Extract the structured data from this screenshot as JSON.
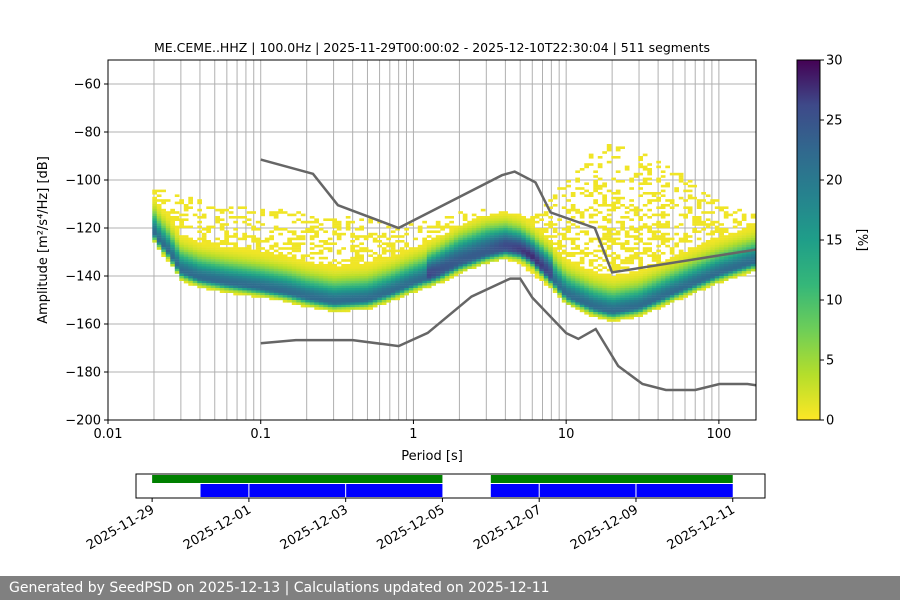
{
  "chart_data": {
    "type": "heatmap",
    "title": "ME.CEME..HHZ | 100.0Hz | 2025-11-29T00:00:02 - 2025-12-10T22:30:04 | 511 segments",
    "xlabel": "Period [s]",
    "ylabel": "Amplitude [m²/s⁴/Hz] [dB]",
    "xscale": "log",
    "xlim": [
      0.01,
      175
    ],
    "ylim": [
      -200,
      -50
    ],
    "xticks": [
      {
        "value": 0.01,
        "label": "0.01"
      },
      {
        "value": 0.1,
        "label": "0.1"
      },
      {
        "value": 1,
        "label": "1"
      },
      {
        "value": 10,
        "label": "10"
      },
      {
        "value": 100,
        "label": "100"
      }
    ],
    "yticks": [
      {
        "value": -60,
        "label": "−60"
      },
      {
        "value": -80,
        "label": "−80"
      },
      {
        "value": -100,
        "label": "−100"
      },
      {
        "value": -120,
        "label": "−120"
      },
      {
        "value": -140,
        "label": "−140"
      },
      {
        "value": -160,
        "label": "−160"
      },
      {
        "value": -180,
        "label": "−180"
      },
      {
        "value": -200,
        "label": "−200"
      }
    ],
    "period_gridlines": [
      0.02,
      0.03,
      0.04,
      0.05,
      0.06,
      0.07,
      0.08,
      0.09,
      0.1,
      0.2,
      0.3,
      0.4,
      0.5,
      0.6,
      0.7,
      0.8,
      0.9,
      1,
      2,
      3,
      4,
      5,
      6,
      7,
      8,
      9,
      10,
      20,
      30,
      40,
      50,
      60,
      70,
      80,
      90,
      100
    ],
    "colorbar": {
      "label": "[%]",
      "range": [
        0,
        30
      ],
      "ticks": [
        {
          "value": 0,
          "label": "0"
        },
        {
          "value": 5,
          "label": "5"
        },
        {
          "value": 10,
          "label": "10"
        },
        {
          "value": 15,
          "label": "15"
        },
        {
          "value": 20,
          "label": "20"
        },
        {
          "value": 25,
          "label": "25"
        },
        {
          "value": 30,
          "label": "30"
        }
      ]
    },
    "noise_models": [
      {
        "name": "NHNM",
        "x": [
          0.1,
          0.22,
          0.32,
          0.8,
          3.8,
          4.6,
          6.3,
          7.9,
          15.4,
          20,
          175
        ],
        "y": [
          -91.5,
          -97.4,
          -110.5,
          -120,
          -98,
          -96.5,
          -101,
          -113.5,
          -120,
          -138.5,
          -129
        ]
      },
      {
        "name": "NLNM",
        "x": [
          0.1,
          0.17,
          0.4,
          0.8,
          1.24,
          2.4,
          4.3,
          5,
          6,
          10,
          12,
          15.6,
          21.9,
          31.6,
          45,
          70,
          101,
          154,
          175
        ],
        "y": [
          -168,
          -166.7,
          -166.7,
          -169.2,
          -163.7,
          -148.6,
          -141.1,
          -141.1,
          -149,
          -163.8,
          -166.2,
          -162.1,
          -177.5,
          -185,
          -187.5,
          -187.5,
          -185,
          -185,
          -185.5
        ]
      }
    ],
    "mode": {
      "name": "modal PSD ridge",
      "x": [
        0.02,
        0.022,
        0.025,
        0.03,
        0.04,
        0.06,
        0.1,
        0.15,
        0.2,
        0.3,
        0.5,
        0.7,
        1,
        1.5,
        2,
        3,
        4,
        5,
        6,
        8,
        10,
        15,
        20,
        30,
        50,
        100,
        175
      ],
      "y": [
        -122,
        -126,
        -130,
        -138,
        -141,
        -143,
        -145,
        -147,
        -149,
        -151,
        -150,
        -147,
        -143,
        -139,
        -135,
        -131,
        -129,
        -130,
        -133,
        -141,
        -148,
        -153,
        -155,
        -153,
        -147,
        -139,
        -134
      ]
    },
    "secondary_mode": {
      "name": "upper peak band",
      "x": [
        1.2,
        2,
        3,
        4,
        5,
        6,
        8
      ],
      "y": [
        -137,
        -128,
        -124,
        -124,
        -126,
        -130,
        -136
      ]
    },
    "scatter_band": {
      "name": "sparse high-amplitude band",
      "x": [
        0.02,
        0.03,
        0.05,
        0.1,
        0.2,
        0.3,
        0.5,
        0.8,
        1.2,
        2,
        3,
        4,
        5,
        7,
        10,
        15,
        20,
        30,
        50,
        100,
        175
      ],
      "top": [
        -102,
        -106,
        -110,
        -112,
        -113,
        -114,
        -116,
        -119,
        -117,
        -113,
        -112,
        -113,
        -115,
        -112,
        -100,
        -88,
        -85,
        -88,
        -95,
        -108,
        -115
      ]
    },
    "data_coverage": {
      "green_bars": [
        {
          "start": "2025-11-29T00:00",
          "end": "2025-12-05T00:00"
        },
        {
          "start": "2025-12-06T00:00",
          "end": "2025-12-11T00:00"
        }
      ],
      "blue_bars": [
        {
          "start": "2025-11-30T00:00",
          "end": "2025-12-05T00:00"
        },
        {
          "start": "2025-12-06T00:00",
          "end": "2025-12-11T00:00"
        }
      ],
      "blue_gaps": [
        "2025-12-01T00:00",
        "2025-12-03T00:00",
        "2025-12-07T00:00",
        "2025-12-09T00:00"
      ],
      "xlim": [
        "2025-11-28T16:00",
        "2025-12-11T16:00"
      ],
      "date_ticks": [
        "2025-11-29",
        "2025-12-01",
        "2025-12-03",
        "2025-12-05",
        "2025-12-07",
        "2025-12-09",
        "2025-12-11"
      ]
    }
  },
  "colors": {
    "noise_model": "#666666",
    "grid": "#b0b0b0",
    "green_bar": "#008000",
    "blue_bar": "#0000ff",
    "footer_bg": "#808080"
  },
  "footer": {
    "text": "Generated by SeedPSD on 2025-12-13 | Calculations updated on 2025-12-11"
  }
}
